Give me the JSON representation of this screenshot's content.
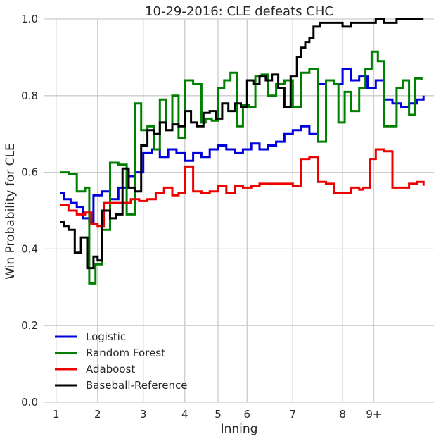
{
  "chart_data": {
    "type": "line",
    "title": "10-29-2016: CLE defeats CHC",
    "xlabel": "Inning",
    "ylabel": "Win Probability for CLE",
    "xlim": [
      0.7,
      10.1
    ],
    "ylim": [
      0.0,
      1.0
    ],
    "grid": true,
    "legend_placement": "bottom-left",
    "x_ticks": [
      {
        "x": 1.0,
        "label": "1"
      },
      {
        "x": 2.0,
        "label": "2"
      },
      {
        "x": 3.1,
        "label": "3"
      },
      {
        "x": 4.1,
        "label": "4"
      },
      {
        "x": 4.9,
        "label": "5"
      },
      {
        "x": 5.6,
        "label": "6"
      },
      {
        "x": 6.7,
        "label": "7"
      },
      {
        "x": 7.9,
        "label": "8"
      },
      {
        "x": 8.65,
        "label": "9+"
      }
    ],
    "y_ticks": [
      {
        "y": 0.0,
        "label": "0.0"
      },
      {
        "y": 0.2,
        "label": "0.2"
      },
      {
        "y": 0.4,
        "label": "0.4"
      },
      {
        "y": 0.6,
        "label": "0.6"
      },
      {
        "y": 0.8,
        "label": "0.8"
      },
      {
        "y": 1.0,
        "label": "1.0"
      }
    ],
    "series": [
      {
        "name": "Logistic",
        "color": "#0000dd",
        "x": [
          1.1,
          1.2,
          1.35,
          1.5,
          1.65,
          1.8,
          1.9,
          2.1,
          2.3,
          2.5,
          2.7,
          2.9,
          3.1,
          3.3,
          3.5,
          3.7,
          3.9,
          4.1,
          4.3,
          4.5,
          4.7,
          4.9,
          5.1,
          5.3,
          5.5,
          5.7,
          5.9,
          6.1,
          6.3,
          6.5,
          6.7,
          6.9,
          7.1,
          7.3,
          7.5,
          7.7,
          7.9,
          8.1,
          8.3,
          8.5,
          8.7,
          8.9,
          9.1,
          9.3,
          9.5,
          9.7,
          9.85
        ],
        "y": [
          0.545,
          0.53,
          0.52,
          0.51,
          0.48,
          0.47,
          0.54,
          0.55,
          0.53,
          0.56,
          0.59,
          0.6,
          0.65,
          0.66,
          0.64,
          0.66,
          0.65,
          0.63,
          0.65,
          0.64,
          0.66,
          0.67,
          0.66,
          0.65,
          0.66,
          0.675,
          0.66,
          0.67,
          0.68,
          0.7,
          0.71,
          0.72,
          0.7,
          0.83,
          0.84,
          0.83,
          0.87,
          0.84,
          0.85,
          0.82,
          0.84,
          0.79,
          0.78,
          0.77,
          0.78,
          0.79,
          0.8
        ]
      },
      {
        "name": "Random Forest",
        "color": "#008000",
        "x": [
          1.1,
          1.3,
          1.5,
          1.7,
          1.8,
          1.95,
          2.1,
          2.3,
          2.5,
          2.7,
          2.9,
          3.05,
          3.2,
          3.35,
          3.5,
          3.65,
          3.8,
          3.95,
          4.1,
          4.3,
          4.5,
          4.6,
          4.75,
          4.9,
          5.05,
          5.2,
          5.35,
          5.5,
          5.65,
          5.8,
          5.95,
          6.1,
          6.3,
          6.5,
          6.7,
          6.9,
          7.1,
          7.3,
          7.5,
          7.7,
          7.8,
          7.95,
          8.1,
          8.3,
          8.45,
          8.6,
          8.75,
          8.9,
          9.05,
          9.2,
          9.35,
          9.5,
          9.65,
          9.8
        ],
        "y": [
          0.6,
          0.595,
          0.55,
          0.56,
          0.31,
          0.36,
          0.45,
          0.625,
          0.62,
          0.49,
          0.78,
          0.71,
          0.72,
          0.66,
          0.79,
          0.71,
          0.8,
          0.69,
          0.84,
          0.83,
          0.73,
          0.74,
          0.735,
          0.82,
          0.84,
          0.86,
          0.72,
          0.775,
          0.77,
          0.85,
          0.855,
          0.8,
          0.83,
          0.84,
          0.77,
          0.86,
          0.87,
          0.68,
          0.84,
          0.83,
          0.73,
          0.81,
          0.76,
          0.82,
          0.87,
          0.915,
          0.89,
          0.72,
          0.72,
          0.82,
          0.84,
          0.75,
          0.845,
          0.84
        ]
      },
      {
        "name": "Adaboost",
        "color": "#ee0000",
        "x": [
          1.1,
          1.3,
          1.5,
          1.7,
          1.85,
          2.0,
          2.15,
          2.4,
          2.6,
          2.8,
          3.0,
          3.2,
          3.4,
          3.6,
          3.8,
          3.95,
          4.1,
          4.3,
          4.5,
          4.7,
          4.9,
          5.1,
          5.3,
          5.5,
          5.7,
          5.9,
          6.1,
          6.3,
          6.5,
          6.7,
          6.9,
          7.1,
          7.3,
          7.5,
          7.7,
          7.9,
          8.1,
          8.3,
          8.4,
          8.55,
          8.7,
          8.9,
          9.1,
          9.3,
          9.5,
          9.7,
          9.85
        ],
        "y": [
          0.515,
          0.5,
          0.49,
          0.495,
          0.465,
          0.46,
          0.52,
          0.52,
          0.52,
          0.53,
          0.525,
          0.53,
          0.545,
          0.56,
          0.54,
          0.545,
          0.615,
          0.55,
          0.545,
          0.55,
          0.565,
          0.545,
          0.565,
          0.56,
          0.565,
          0.57,
          0.57,
          0.57,
          0.57,
          0.565,
          0.635,
          0.64,
          0.575,
          0.57,
          0.545,
          0.545,
          0.56,
          0.555,
          0.56,
          0.635,
          0.66,
          0.655,
          0.56,
          0.56,
          0.57,
          0.575,
          0.565
        ]
      },
      {
        "name": "Baseball-Reference",
        "color": "#000000",
        "x": [
          1.1,
          1.2,
          1.3,
          1.45,
          1.6,
          1.75,
          1.9,
          2.0,
          2.1,
          2.3,
          2.45,
          2.6,
          2.75,
          2.9,
          3.05,
          3.2,
          3.35,
          3.5,
          3.65,
          3.8,
          3.95,
          4.1,
          4.25,
          4.4,
          4.55,
          4.7,
          4.85,
          5.0,
          5.15,
          5.3,
          5.45,
          5.6,
          5.75,
          5.9,
          6.05,
          6.2,
          6.35,
          6.5,
          6.65,
          6.8,
          6.9,
          7.0,
          7.1,
          7.2,
          7.35,
          7.5,
          7.7,
          7.9,
          8.1,
          8.3,
          8.5,
          8.7,
          8.9,
          9.05,
          9.2,
          9.35,
          9.5,
          9.65,
          9.85
        ],
        "y": [
          0.47,
          0.46,
          0.45,
          0.39,
          0.43,
          0.35,
          0.38,
          0.37,
          0.5,
          0.48,
          0.49,
          0.61,
          0.56,
          0.55,
          0.67,
          0.71,
          0.7,
          0.73,
          0.71,
          0.725,
          0.72,
          0.76,
          0.73,
          0.72,
          0.755,
          0.76,
          0.74,
          0.78,
          0.76,
          0.78,
          0.77,
          0.84,
          0.83,
          0.85,
          0.84,
          0.855,
          0.82,
          0.77,
          0.85,
          0.9,
          0.925,
          0.94,
          0.95,
          0.98,
          0.99,
          0.99,
          0.99,
          0.98,
          0.99,
          0.99,
          0.99,
          1.0,
          0.99,
          0.99,
          1.0,
          1.0,
          1.0,
          1.0,
          1.0
        ]
      }
    ]
  }
}
